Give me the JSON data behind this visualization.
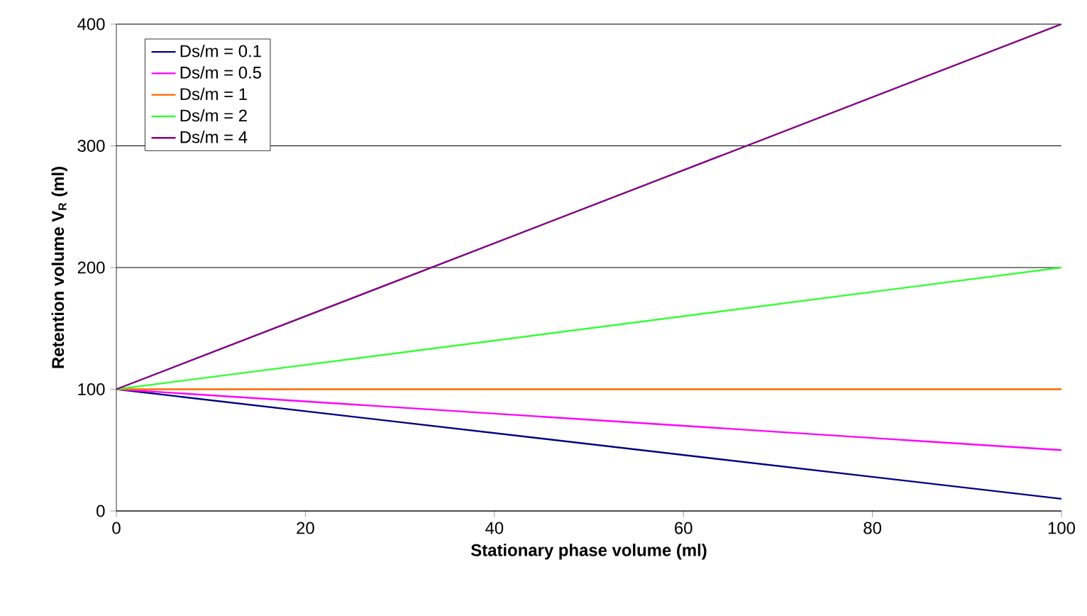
{
  "chart_data": {
    "type": "line",
    "xlabel": "Stationary phase volume (ml)",
    "ylabel": "Retention volume V$_{R}$ (ml)",
    "x": [
      0,
      100
    ],
    "series": [
      {
        "name": "Ds/m = 0.1",
        "color": "#000080",
        "values": [
          100,
          10
        ]
      },
      {
        "name": "Ds/m = 0.5",
        "color": "#ff00ff",
        "values": [
          100,
          50
        ]
      },
      {
        "name": "Ds/m = 1",
        "color": "#ff6600",
        "values": [
          100,
          100
        ]
      },
      {
        "name": "Ds/m = 2",
        "color": "#33ff33",
        "values": [
          100,
          200
        ]
      },
      {
        "name": "Ds/m = 4",
        "color": "#800080",
        "values": [
          100,
          400
        ]
      }
    ],
    "xlim": [
      0,
      100
    ],
    "ylim": [
      0,
      400
    ],
    "xticks": [
      0,
      20,
      40,
      60,
      80,
      100
    ],
    "yticks": [
      0,
      100,
      200,
      300,
      400
    ],
    "grid": "y",
    "legend": "top left"
  }
}
